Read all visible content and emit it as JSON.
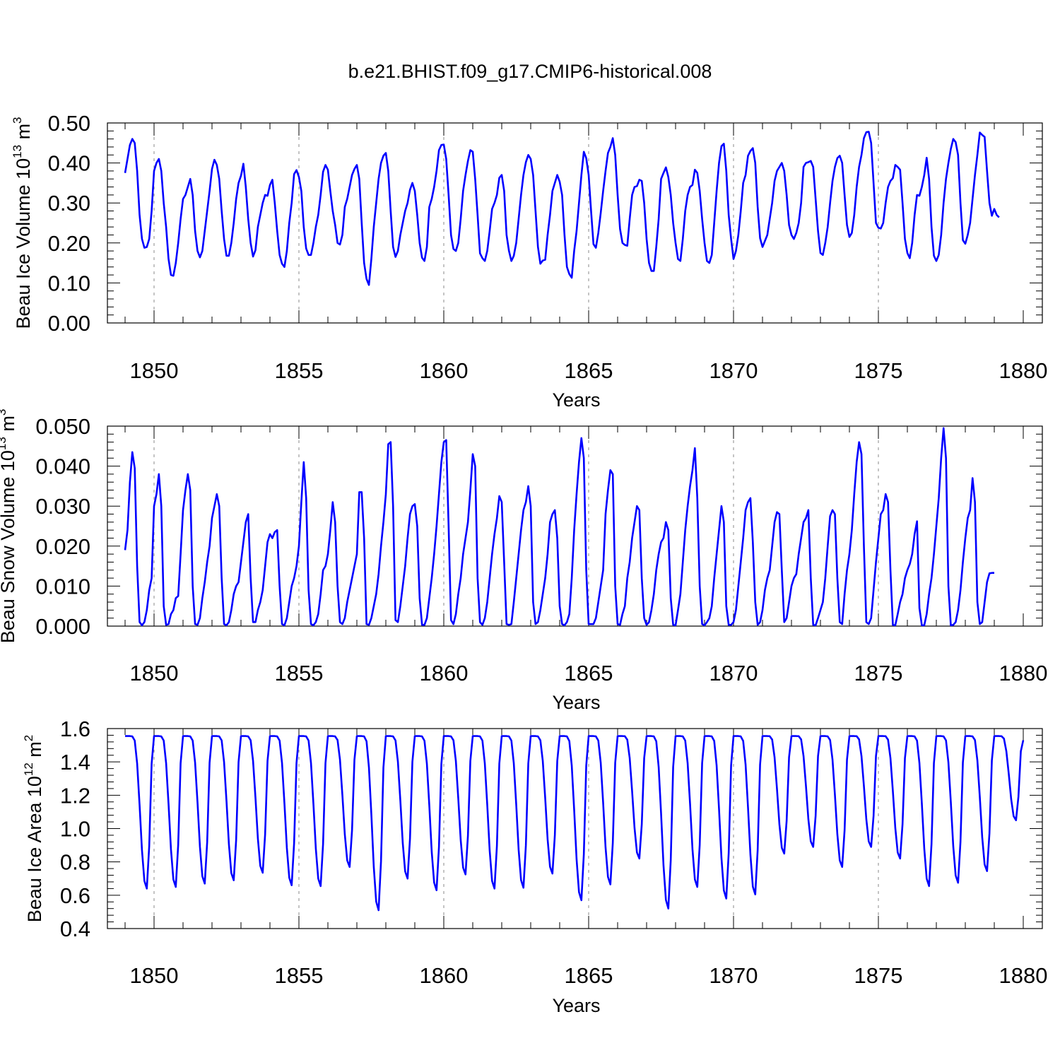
{
  "title": "b.e21.BHIST.f09_g17.CMIP6-historical.008",
  "colors": {
    "line": "#0000ff",
    "axis": "#000000",
    "gridline": "#888888"
  },
  "chart_data": [
    {
      "type": "line",
      "panel": "ice-volume",
      "ylabel_prefix": "Beau Ice Volume 10",
      "ylabel_exp": "13",
      "ylabel_unit": " m",
      "ylabel_unit_exp": "3",
      "xlabel": "Years",
      "xlim": [
        1849.0,
        1880.0
      ],
      "ylim": [
        0.0,
        0.5
      ],
      "xticks": [
        1850,
        1855,
        1860,
        1865,
        1870,
        1875,
        1880
      ],
      "yticks": [
        "0.00",
        "0.10",
        "0.20",
        "0.30",
        "0.40",
        "0.50"
      ],
      "series": [
        {
          "name": "Beau Ice Volume",
          "x_start": 1849.0,
          "step_months": 1,
          "values": [
            0.375,
            0.41,
            0.445,
            0.46,
            0.45,
            0.38,
            0.27,
            0.21,
            0.188,
            0.19,
            0.21,
            0.28,
            0.38,
            0.4,
            0.41,
            0.38,
            0.3,
            0.24,
            0.16,
            0.12,
            0.118,
            0.15,
            0.2,
            0.26,
            0.31,
            0.32,
            0.34,
            0.36,
            0.32,
            0.23,
            0.18,
            0.164,
            0.18,
            0.23,
            0.28,
            0.33,
            0.385,
            0.408,
            0.395,
            0.36,
            0.28,
            0.21,
            0.168,
            0.168,
            0.2,
            0.25,
            0.31,
            0.35,
            0.368,
            0.398,
            0.34,
            0.26,
            0.2,
            0.166,
            0.182,
            0.24,
            0.27,
            0.3,
            0.32,
            0.318,
            0.345,
            0.358,
            0.3,
            0.23,
            0.17,
            0.148,
            0.14,
            0.18,
            0.25,
            0.3,
            0.372,
            0.382,
            0.365,
            0.33,
            0.24,
            0.186,
            0.17,
            0.17,
            0.2,
            0.24,
            0.27,
            0.32,
            0.378,
            0.395,
            0.383,
            0.33,
            0.28,
            0.245,
            0.2,
            0.196,
            0.22,
            0.29,
            0.31,
            0.34,
            0.37,
            0.385,
            0.395,
            0.36,
            0.25,
            0.15,
            0.11,
            0.095,
            0.16,
            0.24,
            0.3,
            0.36,
            0.4,
            0.418,
            0.425,
            0.38,
            0.28,
            0.19,
            0.165,
            0.18,
            0.22,
            0.25,
            0.28,
            0.3,
            0.333,
            0.35,
            0.33,
            0.27,
            0.2,
            0.163,
            0.155,
            0.19,
            0.29,
            0.31,
            0.34,
            0.38,
            0.432,
            0.445,
            0.446,
            0.41,
            0.32,
            0.22,
            0.185,
            0.18,
            0.2,
            0.26,
            0.33,
            0.37,
            0.405,
            0.432,
            0.428,
            0.36,
            0.27,
            0.174,
            0.162,
            0.155,
            0.18,
            0.23,
            0.285,
            0.3,
            0.32,
            0.363,
            0.37,
            0.33,
            0.22,
            0.18,
            0.155,
            0.168,
            0.2,
            0.26,
            0.32,
            0.37,
            0.402,
            0.42,
            0.41,
            0.37,
            0.28,
            0.19,
            0.148,
            0.156,
            0.158,
            0.22,
            0.27,
            0.33,
            0.35,
            0.37,
            0.353,
            0.32,
            0.22,
            0.14,
            0.122,
            0.113,
            0.18,
            0.23,
            0.3,
            0.37,
            0.428,
            0.412,
            0.37,
            0.28,
            0.197,
            0.188,
            0.225,
            0.275,
            0.33,
            0.38,
            0.425,
            0.44,
            0.462,
            0.42,
            0.32,
            0.235,
            0.2,
            0.195,
            0.193,
            0.26,
            0.32,
            0.34,
            0.342,
            0.358,
            0.355,
            0.3,
            0.21,
            0.15,
            0.13,
            0.13,
            0.19,
            0.26,
            0.36,
            0.375,
            0.389,
            0.365,
            0.32,
            0.25,
            0.2,
            0.16,
            0.155,
            0.21,
            0.28,
            0.32,
            0.34,
            0.345,
            0.383,
            0.375,
            0.33,
            0.26,
            0.2,
            0.155,
            0.15,
            0.17,
            0.25,
            0.33,
            0.4,
            0.442,
            0.448,
            0.38,
            0.27,
            0.21,
            0.16,
            0.18,
            0.22,
            0.28,
            0.35,
            0.37,
            0.418,
            0.43,
            0.437,
            0.4,
            0.29,
            0.212,
            0.19,
            0.205,
            0.22,
            0.26,
            0.3,
            0.355,
            0.38,
            0.39,
            0.4,
            0.38,
            0.32,
            0.245,
            0.22,
            0.21,
            0.225,
            0.25,
            0.3,
            0.39,
            0.4,
            0.402,
            0.405,
            0.39,
            0.31,
            0.23,
            0.175,
            0.17,
            0.2,
            0.24,
            0.3,
            0.355,
            0.39,
            0.412,
            0.418,
            0.4,
            0.32,
            0.245,
            0.215,
            0.225,
            0.27,
            0.34,
            0.39,
            0.42,
            0.462,
            0.477,
            0.478,
            0.45,
            0.35,
            0.25,
            0.238,
            0.236,
            0.25,
            0.3,
            0.34,
            0.355,
            0.362,
            0.395,
            0.39,
            0.383,
            0.3,
            0.21,
            0.175,
            0.162,
            0.2,
            0.27,
            0.32,
            0.318,
            0.34,
            0.37,
            0.413,
            0.36,
            0.24,
            0.168,
            0.155,
            0.17,
            0.22,
            0.3,
            0.36,
            0.4,
            0.435,
            0.46,
            0.452,
            0.42,
            0.3,
            0.207,
            0.198,
            0.22,
            0.25,
            0.31,
            0.37,
            0.42,
            0.476,
            0.47,
            0.465,
            0.38,
            0.3,
            0.268,
            0.285,
            0.27,
            0.264
          ]
        }
      ]
    },
    {
      "type": "line",
      "panel": "snow-volume",
      "ylabel_prefix": "Beau Snow Volume 10",
      "ylabel_exp": "13",
      "ylabel_unit": " m",
      "ylabel_unit_exp": "3",
      "xlabel": "Years",
      "xlim": [
        1849.0,
        1880.0
      ],
      "ylim": [
        0.0,
        0.05
      ],
      "xticks": [
        1850,
        1855,
        1860,
        1865,
        1870,
        1875,
        1880
      ],
      "yticks": [
        "0.000",
        "0.010",
        "0.020",
        "0.030",
        "0.040",
        "0.050"
      ],
      "series": [
        {
          "name": "Beau Snow Volume",
          "x_start": 1849.0,
          "step_months": 1,
          "values": [
            0.019,
            0.024,
            0.036,
            0.0435,
            0.0395,
            0.015,
            0.001,
            0.0002,
            0.001,
            0.004,
            0.009,
            0.012,
            0.03,
            0.033,
            0.038,
            0.03,
            0.005,
            0.0003,
            0.0005,
            0.003,
            0.004,
            0.007,
            0.0075,
            0.018,
            0.029,
            0.034,
            0.038,
            0.034,
            0.01,
            0.0005,
            0.0003,
            0.002,
            0.007,
            0.011,
            0.016,
            0.02,
            0.027,
            0.03,
            0.033,
            0.03,
            0.012,
            0.0005,
            0.0002,
            0.001,
            0.004,
            0.008,
            0.01,
            0.011,
            0.016,
            0.021,
            0.026,
            0.028,
            0.012,
            0.001,
            0.001,
            0.004,
            0.006,
            0.009,
            0.015,
            0.021,
            0.023,
            0.022,
            0.0235,
            0.024,
            0.01,
            0.0005,
            0.0002,
            0.002,
            0.006,
            0.01,
            0.012,
            0.015,
            0.02,
            0.031,
            0.041,
            0.032,
            0.009,
            0.0005,
            0.0002,
            0.001,
            0.003,
            0.008,
            0.014,
            0.015,
            0.018,
            0.024,
            0.031,
            0.026,
            0.01,
            0.001,
            0.0005,
            0.002,
            0.006,
            0.009,
            0.012,
            0.015,
            0.018,
            0.0335,
            0.0335,
            0.022,
            0.0005,
            0.0003,
            0.002,
            0.005,
            0.008,
            0.013,
            0.02,
            0.026,
            0.033,
            0.0455,
            0.046,
            0.03,
            0.0015,
            0.001,
            0.005,
            0.01,
            0.015,
            0.022,
            0.028,
            0.03,
            0.0305,
            0.025,
            0.007,
            0.0003,
            0.0003,
            0.002,
            0.007,
            0.012,
            0.018,
            0.025,
            0.033,
            0.041,
            0.046,
            0.0465,
            0.025,
            0.0015,
            0.0005,
            0.003,
            0.008,
            0.012,
            0.018,
            0.022,
            0.026,
            0.034,
            0.043,
            0.04,
            0.012,
            0.001,
            0.0003,
            0.002,
            0.006,
            0.012,
            0.018,
            0.023,
            0.027,
            0.0325,
            0.031,
            0.016,
            0.0005,
            0.0003,
            0.0005,
            0.006,
            0.012,
            0.018,
            0.024,
            0.029,
            0.031,
            0.035,
            0.03,
            0.006,
            0.0005,
            0.001,
            0.004,
            0.008,
            0.012,
            0.018,
            0.026,
            0.028,
            0.029,
            0.022,
            0.005,
            0.0005,
            0.0002,
            0.001,
            0.003,
            0.012,
            0.024,
            0.033,
            0.041,
            0.047,
            0.042,
            0.014,
            0.0005,
            0.0005,
            0.0005,
            0.002,
            0.006,
            0.01,
            0.014,
            0.028,
            0.034,
            0.039,
            0.038,
            0.01,
            0.0005,
            0.0003,
            0.003,
            0.005,
            0.012,
            0.016,
            0.022,
            0.026,
            0.03,
            0.029,
            0.012,
            0.002,
            0.0003,
            0.001,
            0.004,
            0.008,
            0.014,
            0.018,
            0.021,
            0.022,
            0.026,
            0.024,
            0.007,
            0.0003,
            0.0002,
            0.004,
            0.008,
            0.016,
            0.024,
            0.03,
            0.035,
            0.039,
            0.0445,
            0.032,
            0.01,
            0.0005,
            0.0002,
            0.001,
            0.002,
            0.005,
            0.012,
            0.018,
            0.024,
            0.03,
            0.026,
            0.005,
            0.0003,
            0.0003,
            0.001,
            0.004,
            0.01,
            0.016,
            0.022,
            0.029,
            0.031,
            0.032,
            0.021,
            0.006,
            0.0003,
            0.001,
            0.004,
            0.009,
            0.012,
            0.014,
            0.02,
            0.026,
            0.0285,
            0.028,
            0.014,
            0.001,
            0.002,
            0.006,
            0.01,
            0.012,
            0.013,
            0.018,
            0.022,
            0.026,
            0.027,
            0.029,
            0.012,
            0.0003,
            0.0002,
            0.002,
            0.004,
            0.006,
            0.012,
            0.02,
            0.0275,
            0.029,
            0.028,
            0.012,
            0.001,
            0.0005,
            0.008,
            0.014,
            0.018,
            0.024,
            0.033,
            0.041,
            0.046,
            0.043,
            0.02,
            0.001,
            0.0005,
            0.002,
            0.009,
            0.016,
            0.022,
            0.028,
            0.029,
            0.033,
            0.031,
            0.014,
            0.0003,
            0.0002,
            0.003,
            0.006,
            0.008,
            0.012,
            0.014,
            0.0155,
            0.018,
            0.023,
            0.0262,
            0.0045,
            0.0002,
            0.0002,
            0.003,
            0.008,
            0.012,
            0.018,
            0.025,
            0.032,
            0.042,
            0.0495,
            0.042,
            0.01,
            0.0002,
            0.0003,
            0.001,
            0.004,
            0.009,
            0.016,
            0.022,
            0.027,
            0.029,
            0.037,
            0.031,
            0.006,
            0.0005,
            0.001,
            0.006,
            0.011,
            0.0132,
            0.0133,
            0.0133
          ]
        }
      ]
    },
    {
      "type": "line",
      "panel": "ice-area",
      "ylabel_prefix": "Beau Ice Area 10",
      "ylabel_exp": "12",
      "ylabel_unit": " m",
      "ylabel_unit_exp": "2",
      "xlabel": "Years",
      "xlim": [
        1849.0,
        1880.0
      ],
      "ylim": [
        0.4,
        1.6
      ],
      "xticks": [
        1850,
        1855,
        1860,
        1865,
        1870,
        1875,
        1880
      ],
      "yticks": [
        "0.4",
        "0.6",
        "0.8",
        "1.0",
        "1.2",
        "1.4",
        "1.6"
      ],
      "trough_minima": [
        0.64,
        0.65,
        0.67,
        0.69,
        0.735,
        0.66,
        0.655,
        0.77,
        0.51,
        0.7,
        0.63,
        0.725,
        0.64,
        0.645,
        0.73,
        0.57,
        0.665,
        0.82,
        0.52,
        0.65,
        0.58,
        0.605,
        0.85,
        0.89,
        0.77,
        0.89,
        0.82,
        0.655,
        0.675,
        0.745,
        1.05
      ],
      "series": [
        {
          "name": "Beau Ice Area",
          "x_start": 1849.0,
          "step_months": 1,
          "values": "generated-from-trough_minima"
        }
      ]
    }
  ]
}
